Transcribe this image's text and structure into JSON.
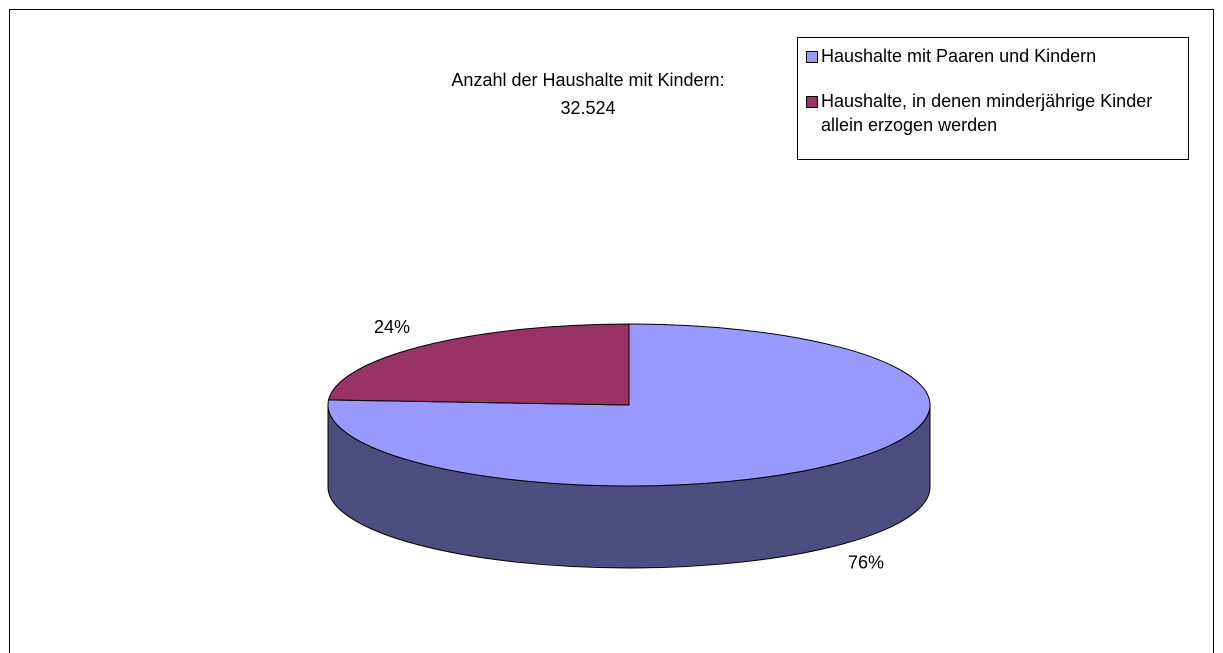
{
  "chart_data": {
    "type": "pie",
    "title": "Anzahl der Haushalte mit Kindern: 32.524",
    "categories": [
      "Haushalte mit Paaren und Kindern",
      "Haushalte, in denen minderjährige Kinder allein erzogen werden"
    ],
    "values": [
      76,
      24
    ],
    "value_labels": [
      "76%",
      "24%"
    ],
    "colors": [
      "#9999ff",
      "#993366"
    ],
    "side_colors": [
      "#4d4d80",
      "#4d1a33"
    ],
    "legend": "top-right"
  }
}
